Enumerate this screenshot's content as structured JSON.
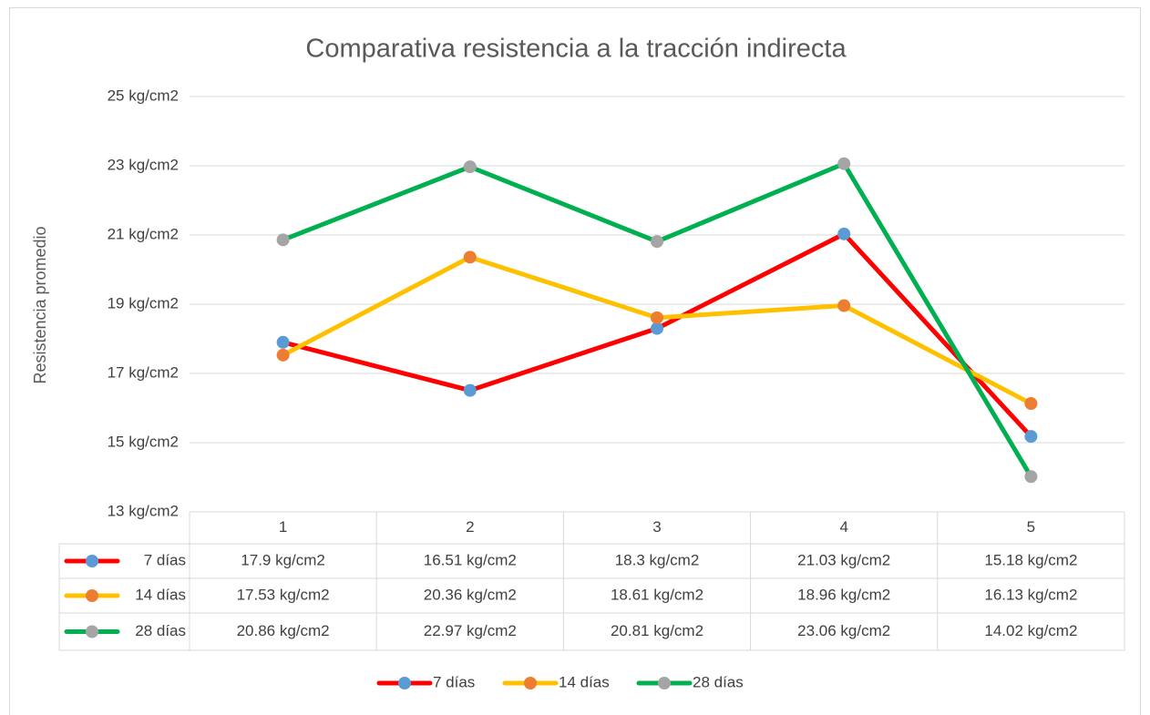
{
  "chart_data": {
    "type": "line",
    "title": "Comparativa resistencia a la tracción indirecta",
    "y_label": "Resistencia promedio",
    "categories": [
      "1",
      "2",
      "3",
      "4",
      "5"
    ],
    "series": [
      {
        "name": "7 días",
        "color": "#ff0000",
        "marker_color": "#5b9bd5",
        "values": [
          17.9,
          16.51,
          18.3,
          21.03,
          15.18
        ],
        "value_labels": [
          "17.9 kg/cm2",
          "16.51 kg/cm2",
          "18.3 kg/cm2",
          "21.03 kg/cm2",
          "15.18 kg/cm2"
        ]
      },
      {
        "name": "14 días",
        "color": "#ffc000",
        "marker_color": "#ed7d31",
        "values": [
          17.53,
          20.36,
          18.61,
          18.96,
          16.13
        ],
        "value_labels": [
          "17.53 kg/cm2",
          "20.36 kg/cm2",
          "18.61 kg/cm2",
          "18.96 kg/cm2",
          "16.13 kg/cm2"
        ]
      },
      {
        "name": "28 días",
        "color": "#00b050",
        "marker_color": "#a5a5a5",
        "values": [
          20.86,
          22.97,
          20.81,
          23.06,
          14.02
        ],
        "value_labels": [
          "20.86 kg/cm2",
          "22.97 kg/cm2",
          "20.81 kg/cm2",
          "23.06 kg/cm2",
          "14.02 kg/cm2"
        ]
      }
    ],
    "ylim": [
      13,
      25
    ],
    "yticks": [
      {
        "value": 13,
        "label": "13 kg/cm2"
      },
      {
        "value": 15,
        "label": "15 kg/cm2"
      },
      {
        "value": 17,
        "label": "17 kg/cm2"
      },
      {
        "value": 19,
        "label": "19 kg/cm2"
      },
      {
        "value": 21,
        "label": "21 kg/cm2"
      },
      {
        "value": 23,
        "label": "23 kg/cm2"
      },
      {
        "value": 25,
        "label": "25 kg/cm2"
      }
    ],
    "grid": true,
    "legend": "bottom"
  }
}
